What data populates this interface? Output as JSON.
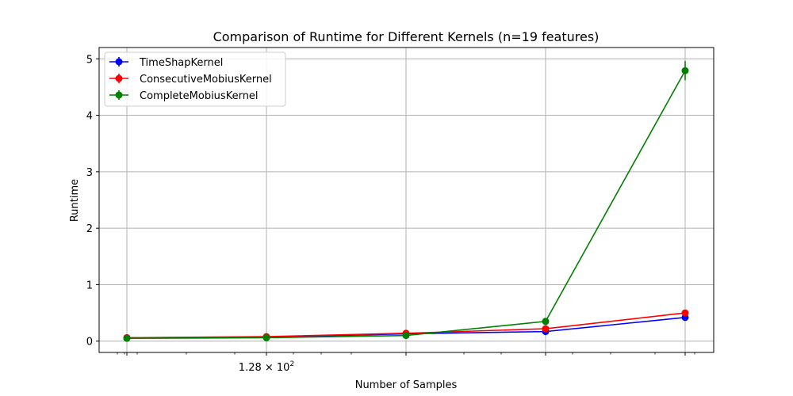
{
  "chart_data": {
    "type": "line",
    "title": "Comparison of Runtime for Different Kernels (n=19 features)",
    "xlabel": "Number of Samples",
    "ylabel": "Runtime",
    "x_scale": "log",
    "x_tick_label": "1.28 × 10^2",
    "x_tick_label_base": "1.28 × 10",
    "x_tick_label_exp": "2",
    "y_ticks": [
      "0",
      "1",
      "2",
      "3",
      "4",
      "5"
    ],
    "ylim": [
      -0.2,
      5.2
    ],
    "grid": true,
    "legend_position": "top-left",
    "series": [
      {
        "name": "TimeShapKernel",
        "color": "#0000ff",
        "values": [
          0.06,
          0.07,
          0.13,
          0.17,
          0.42
        ],
        "errors": [
          0.01,
          0.01,
          0.01,
          0.02,
          0.03
        ]
      },
      {
        "name": "ConsecutiveMobiusKernel",
        "color": "#ff0000",
        "values": [
          0.06,
          0.08,
          0.14,
          0.22,
          0.5
        ],
        "errors": [
          0.01,
          0.01,
          0.01,
          0.02,
          0.03
        ]
      },
      {
        "name": "CompleteMobiusKernel",
        "color": "#008000",
        "values": [
          0.05,
          0.06,
          0.1,
          0.35,
          4.79
        ],
        "errors": [
          0.01,
          0.01,
          0.01,
          0.03,
          0.17
        ]
      }
    ]
  }
}
